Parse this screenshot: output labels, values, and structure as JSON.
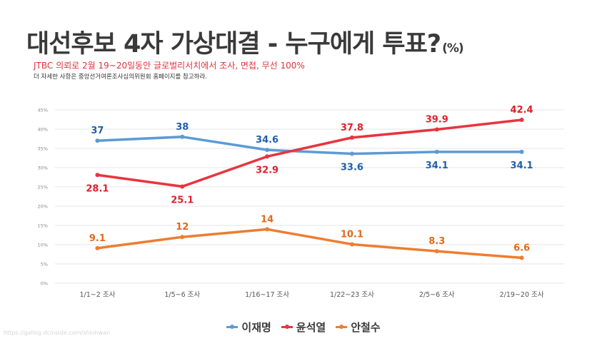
{
  "header": {
    "title": "대선후보 4자 가상대결 - 누구에게 투표?",
    "title_unit": "(%)",
    "subtitle": "JTBC 의뢰로 2월 19~20일동안 글로벌리서치에서 조사, 면접, 무선 100%",
    "note": "더 자세한 사항은 중앙선거여론조사심의위원회 홈페이지를 참고하라."
  },
  "watermark": "https://gallog.dcinside.com/shinhwan",
  "chart_data": {
    "type": "line",
    "title": "대선후보 4자 가상대결 - 누구에게 투표?(%)",
    "xlabel": "",
    "ylabel": "",
    "categories": [
      "1/1~2 조사",
      "1/5~6 조사",
      "1/16~17 조사",
      "1/22~23 조사",
      "2/5~6 조사",
      "2/19~20 조사"
    ],
    "ylim": [
      0,
      45
    ],
    "yticks": [
      0,
      5,
      10,
      15,
      20,
      25,
      30,
      35,
      40,
      45
    ],
    "ytick_labels": [
      "0%",
      "5%",
      "10%",
      "15%",
      "20%",
      "25%",
      "30%",
      "35%",
      "40%",
      "45%"
    ],
    "grid": true,
    "legend_position": "bottom",
    "series": [
      {
        "name": "이재명",
        "color": "#5b9bd5",
        "label_color": "#1f5fae",
        "label_position": [
          "above",
          "above",
          "above",
          "below",
          "below",
          "below"
        ],
        "values": [
          37,
          38,
          34.6,
          33.6,
          34.1,
          34.1
        ],
        "labels": [
          "37",
          "38",
          "34.6",
          "33.6",
          "34.1",
          "34.1"
        ]
      },
      {
        "name": "윤석열",
        "color": "#e8343f",
        "label_color": "#e0202c",
        "label_position": [
          "below",
          "below",
          "below",
          "above",
          "above",
          "above"
        ],
        "values": [
          28.1,
          25.1,
          32.9,
          37.8,
          39.9,
          42.4
        ],
        "labels": [
          "28.1",
          "25.1",
          "32.9",
          "37.8",
          "39.9",
          "42.4"
        ]
      },
      {
        "name": "안철수",
        "color": "#ed7d31",
        "label_color": "#e06a1b",
        "label_position": [
          "above",
          "above",
          "above",
          "above",
          "above",
          "above"
        ],
        "values": [
          9.1,
          12,
          14,
          10.1,
          8.3,
          6.6
        ],
        "labels": [
          "9.1",
          "12",
          "14",
          "10.1",
          "8.3",
          "6.6"
        ]
      }
    ]
  }
}
